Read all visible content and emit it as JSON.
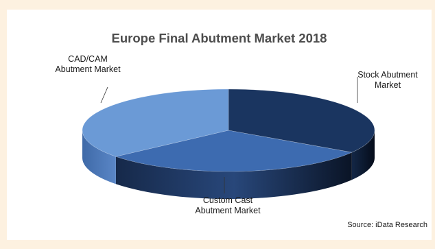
{
  "chart_data": {
    "type": "pie",
    "style": "3d",
    "title": "Europe Final Abutment Market 2018",
    "slices": [
      {
        "label": "Stock Abutment\nMarket",
        "value": 34,
        "color": "#1a3560"
      },
      {
        "label": "Custom Cast\nAbutment Market",
        "value": 30,
        "color": "#3d6bb0"
      },
      {
        "label": "CAD/CAM\nAbutment Market",
        "value": 36,
        "color": "#6b9ad6"
      }
    ],
    "source": "Source: iData Research"
  }
}
